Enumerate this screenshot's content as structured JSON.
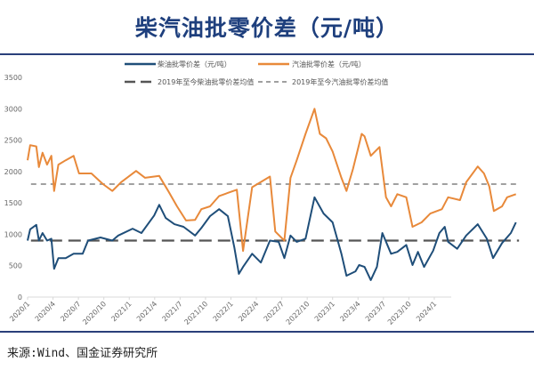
{
  "title": "柴汽油批零价差（元/吨）",
  "source": "来源:Wind、国金证券研究所",
  "chart_data": {
    "type": "line",
    "title": "柴汽油批零价差（元/吨）",
    "xlabel": "",
    "ylabel": "",
    "ylim": [
      0,
      3500
    ],
    "yticks": [
      0,
      500,
      1000,
      1500,
      2000,
      2500,
      3000,
      3500
    ],
    "xlim": [
      "2020-01-01",
      "2024-12-01"
    ],
    "xtick_labels": [
      "2020/1",
      "2020/4",
      "2020/7",
      "2020/10",
      "2021/1",
      "2021/4",
      "2021/7",
      "2021/10",
      "2022/1",
      "2022/4",
      "2022/7",
      "2022/10",
      "2023/1",
      "2023/4",
      "2023/7",
      "2023/10",
      "2024/1"
    ],
    "grid": false,
    "legend_position": "top",
    "series": [
      {
        "name": "柴油批零价差（元/吨）",
        "color": "#1f4e79",
        "style": "solid",
        "points": [
          [
            "2020-01-01",
            900
          ],
          [
            "2020-01-10",
            1080
          ],
          [
            "2020-02-02",
            1150
          ],
          [
            "2020-02-11",
            900
          ],
          [
            "2020-02-24",
            1020
          ],
          [
            "2020-03-10",
            900
          ],
          [
            "2020-03-25",
            930
          ],
          [
            "2020-04-05",
            450
          ],
          [
            "2020-04-20",
            620
          ],
          [
            "2020-05-16",
            620
          ],
          [
            "2020-06-14",
            690
          ],
          [
            "2020-07-16",
            690
          ],
          [
            "2020-08-05",
            900
          ],
          [
            "2020-09-19",
            950
          ],
          [
            "2020-11-01",
            900
          ],
          [
            "2020-11-22",
            980
          ],
          [
            "2021-01-13",
            1090
          ],
          [
            "2021-02-14",
            1020
          ],
          [
            "2021-03-29",
            1300
          ],
          [
            "2021-04-17",
            1470
          ],
          [
            "2021-05-10",
            1260
          ],
          [
            "2021-06-11",
            1160
          ],
          [
            "2021-07-13",
            1120
          ],
          [
            "2021-08-24",
            980
          ],
          [
            "2021-09-16",
            1100
          ],
          [
            "2021-10-17",
            1290
          ],
          [
            "2021-11-19",
            1400
          ],
          [
            "2021-12-20",
            1290
          ],
          [
            "2022-01-13",
            790
          ],
          [
            "2022-01-29",
            370
          ],
          [
            "2022-02-14",
            480
          ],
          [
            "2022-03-16",
            690
          ],
          [
            "2022-04-17",
            550
          ],
          [
            "2022-05-19",
            900
          ],
          [
            "2022-06-20",
            880
          ],
          [
            "2022-07-10",
            620
          ],
          [
            "2022-08-02",
            980
          ],
          [
            "2022-08-24",
            880
          ],
          [
            "2022-09-25",
            930
          ],
          [
            "2022-10-27",
            1590
          ],
          [
            "2022-11-29",
            1330
          ],
          [
            "2023-01-01",
            1190
          ],
          [
            "2023-02-02",
            690
          ],
          [
            "2023-02-20",
            340
          ],
          [
            "2023-03-22",
            410
          ],
          [
            "2023-04-05",
            510
          ],
          [
            "2023-04-24",
            480
          ],
          [
            "2023-05-16",
            270
          ],
          [
            "2023-06-08",
            480
          ],
          [
            "2023-06-27",
            1020
          ],
          [
            "2023-07-28",
            690
          ],
          [
            "2023-08-20",
            720
          ],
          [
            "2023-09-22",
            830
          ],
          [
            "2023-10-14",
            510
          ],
          [
            "2023-11-03",
            720
          ],
          [
            "2023-11-25",
            480
          ],
          [
            "2023-12-27",
            740
          ],
          [
            "2024-01-19",
            1020
          ],
          [
            "2024-02-08",
            1120
          ],
          [
            "2024-02-20",
            880
          ],
          [
            "2024-03-22",
            770
          ],
          [
            "2024-04-24",
            980
          ],
          [
            "2024-06-05",
            1160
          ],
          [
            "2024-07-07",
            930
          ],
          [
            "2024-07-29",
            620
          ],
          [
            "2024-09-01",
            860
          ],
          [
            "2024-10-02",
            1020
          ],
          [
            "2024-10-20",
            1190
          ]
        ]
      },
      {
        "name": "汽油批零价差（元/吨）",
        "color": "#e8893a",
        "style": "solid",
        "points": [
          [
            "2020-01-01",
            2180
          ],
          [
            "2020-01-10",
            2420
          ],
          [
            "2020-02-02",
            2400
          ],
          [
            "2020-02-11",
            2070
          ],
          [
            "2020-02-24",
            2300
          ],
          [
            "2020-03-10",
            2110
          ],
          [
            "2020-03-25",
            2250
          ],
          [
            "2020-04-05",
            1690
          ],
          [
            "2020-04-20",
            2110
          ],
          [
            "2020-05-16",
            2180
          ],
          [
            "2020-06-14",
            2250
          ],
          [
            "2020-07-03",
            1970
          ],
          [
            "2020-08-17",
            1970
          ],
          [
            "2020-09-28",
            1800
          ],
          [
            "2020-11-01",
            1690
          ],
          [
            "2020-12-02",
            1830
          ],
          [
            "2021-01-25",
            2010
          ],
          [
            "2021-02-27",
            1900
          ],
          [
            "2021-04-17",
            1930
          ],
          [
            "2021-05-19",
            1690
          ],
          [
            "2021-06-20",
            1445
          ],
          [
            "2021-07-22",
            1220
          ],
          [
            "2021-08-24",
            1230
          ],
          [
            "2021-09-16",
            1400
          ],
          [
            "2021-10-17",
            1445
          ],
          [
            "2021-11-19",
            1610
          ],
          [
            "2022-01-22",
            1710
          ],
          [
            "2022-02-14",
            735
          ],
          [
            "2022-03-16",
            1750
          ],
          [
            "2022-05-19",
            1920
          ],
          [
            "2022-06-08",
            1045
          ],
          [
            "2022-07-10",
            900
          ],
          [
            "2022-08-02",
            1900
          ],
          [
            "2022-08-24",
            2180
          ],
          [
            "2022-09-25",
            2600
          ],
          [
            "2022-10-27",
            3000
          ],
          [
            "2022-11-16",
            2600
          ],
          [
            "2022-12-08",
            2530
          ],
          [
            "2023-01-01",
            2320
          ],
          [
            "2023-02-02",
            1900
          ],
          [
            "2023-02-20",
            1690
          ],
          [
            "2023-03-13",
            2040
          ],
          [
            "2023-04-14",
            2600
          ],
          [
            "2023-04-24",
            2560
          ],
          [
            "2023-05-16",
            2250
          ],
          [
            "2023-06-17",
            2390
          ],
          [
            "2023-07-10",
            1590
          ],
          [
            "2023-07-28",
            1445
          ],
          [
            "2023-08-20",
            1640
          ],
          [
            "2023-09-22",
            1590
          ],
          [
            "2023-10-14",
            1120
          ],
          [
            "2023-11-16",
            1190
          ],
          [
            "2023-12-17",
            1330
          ],
          [
            "2024-01-28",
            1400
          ],
          [
            "2024-02-20",
            1590
          ],
          [
            "2024-04-02",
            1545
          ],
          [
            "2024-04-24",
            1830
          ],
          [
            "2024-06-05",
            2080
          ],
          [
            "2024-06-27",
            1970
          ],
          [
            "2024-07-16",
            1760
          ],
          [
            "2024-08-02",
            1370
          ],
          [
            "2024-09-01",
            1445
          ],
          [
            "2024-09-19",
            1590
          ],
          [
            "2024-10-20",
            1640
          ]
        ]
      },
      {
        "name": "2019年至今柴油批零价差均值",
        "color": "#555555",
        "style": "long-dash",
        "value": 900
      },
      {
        "name": "2019年至今汽油批零价差均值",
        "color": "#a0a0a0",
        "style": "short-dash",
        "value": 1800
      }
    ]
  }
}
